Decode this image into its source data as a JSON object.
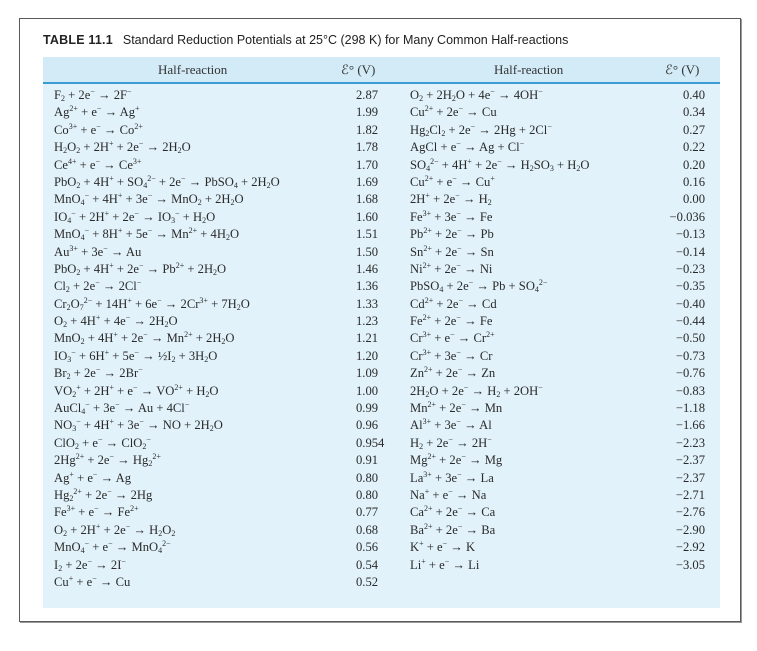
{
  "table": {
    "number": "TABLE 11.1",
    "caption": "Standard Reduction Potentials at 25°C (298 K) for Many Common Half-reactions",
    "headers": {
      "left_reaction": "Half-reaction",
      "left_potential": "ℰ° (V)",
      "right_reaction": "Half-reaction",
      "right_potential": "ℰ° (V)"
    },
    "colors": {
      "panel_bg": "#e1f2fa",
      "header_bg": "#d2ebf7",
      "header_rule": "#3b9bd3"
    },
    "left_column": [
      {
        "reaction": "F<sub>2</sub> + 2e<sup>−</sup> → 2F<sup>−</sup>",
        "potential": "2.87"
      },
      {
        "reaction": "Ag<sup>2+</sup> + e<sup>−</sup> → Ag<sup>+</sup>",
        "potential": "1.99"
      },
      {
        "reaction": "Co<sup>3+</sup> + e<sup>−</sup> → Co<sup>2+</sup>",
        "potential": "1.82"
      },
      {
        "reaction": "H<sub>2</sub>O<sub>2</sub> + 2H<sup>+</sup> + 2e<sup>−</sup> → 2H<sub>2</sub>O",
        "potential": "1.78"
      },
      {
        "reaction": "Ce<sup>4+</sup> + e<sup>−</sup> → Ce<sup>3+</sup>",
        "potential": "1.70"
      },
      {
        "reaction": "PbO<sub>2</sub> + 4H<sup>+</sup> + SO<sub>4</sub><sup>2−</sup> + 2e<sup>−</sup> → PbSO<sub>4</sub> + 2H<sub>2</sub>O",
        "potential": "1.69"
      },
      {
        "reaction": "MnO<sub>4</sub><sup>−</sup> + 4H<sup>+</sup> + 3e<sup>−</sup> → MnO<sub>2</sub> + 2H<sub>2</sub>O",
        "potential": "1.68"
      },
      {
        "reaction": "IO<sub>4</sub><sup>−</sup> + 2H<sup>+</sup> + 2e<sup>−</sup> → IO<sub>3</sub><sup>−</sup> + H<sub>2</sub>O",
        "potential": "1.60"
      },
      {
        "reaction": "MnO<sub>4</sub><sup>−</sup> + 8H<sup>+</sup> + 5e<sup>−</sup> → Mn<sup>2+</sup> + 4H<sub>2</sub>O",
        "potential": "1.51"
      },
      {
        "reaction": "Au<sup>3+</sup> + 3e<sup>−</sup> → Au",
        "potential": "1.50"
      },
      {
        "reaction": "PbO<sub>2</sub> + 4H<sup>+</sup> + 2e<sup>−</sup> → Pb<sup>2+</sup> + 2H<sub>2</sub>O",
        "potential": "1.46"
      },
      {
        "reaction": "Cl<sub>2</sub> + 2e<sup>−</sup> → 2Cl<sup>−</sup>",
        "potential": "1.36"
      },
      {
        "reaction": "Cr<sub>2</sub>O<sub>7</sub><sup>2−</sup> + 14H<sup>+</sup> + 6e<sup>−</sup> → 2Cr<sup>3+</sup> + 7H<sub>2</sub>O",
        "potential": "1.33"
      },
      {
        "reaction": "O<sub>2</sub> + 4H<sup>+</sup> + 4e<sup>−</sup> → 2H<sub>2</sub>O",
        "potential": "1.23"
      },
      {
        "reaction": "MnO<sub>2</sub> + 4H<sup>+</sup> + 2e<sup>−</sup> → Mn<sup>2+</sup> + 2H<sub>2</sub>O",
        "potential": "1.21"
      },
      {
        "reaction": "IO<sub>3</sub><sup>−</sup> + 6H<sup>+</sup> + 5e<sup>−</sup> → ½I<sub>2</sub> + 3H<sub>2</sub>O",
        "potential": "1.20"
      },
      {
        "reaction": "Br<sub>2</sub> + 2e<sup>−</sup> → 2Br<sup>−</sup>",
        "potential": "1.09"
      },
      {
        "reaction": "VO<sub>2</sub><sup>+</sup> + 2H<sup>+</sup> + e<sup>−</sup> → VO<sup>2+</sup> + H<sub>2</sub>O",
        "potential": "1.00"
      },
      {
        "reaction": "AuCl<sub>4</sub><sup>−</sup> + 3e<sup>−</sup> → Au + 4Cl<sup>−</sup>",
        "potential": "0.99"
      },
      {
        "reaction": "NO<sub>3</sub><sup>−</sup> + 4H<sup>+</sup> + 3e<sup>−</sup> → NO + 2H<sub>2</sub>O",
        "potential": "0.96"
      },
      {
        "reaction": "ClO<sub>2</sub> + e<sup>−</sup> → ClO<sub>2</sub><sup>−</sup>",
        "potential": "0.954"
      },
      {
        "reaction": "2Hg<sup>2+</sup> + 2e<sup>−</sup> → Hg<sub>2</sub><sup>2+</sup>",
        "potential": "0.91"
      },
      {
        "reaction": "Ag<sup>+</sup> + e<sup>−</sup> → Ag",
        "potential": "0.80"
      },
      {
        "reaction": "Hg<sub>2</sub><sup>2+</sup> + 2e<sup>−</sup> → 2Hg",
        "potential": "0.80"
      },
      {
        "reaction": "Fe<sup>3+</sup> + e<sup>−</sup> → Fe<sup>2+</sup>",
        "potential": "0.77"
      },
      {
        "reaction": "O<sub>2</sub> + 2H<sup>+</sup> + 2e<sup>−</sup> → H<sub>2</sub>O<sub>2</sub>",
        "potential": "0.68"
      },
      {
        "reaction": "MnO<sub>4</sub><sup>−</sup> + e<sup>−</sup> → MnO<sub>4</sub><sup>2−</sup>",
        "potential": "0.56"
      },
      {
        "reaction": "I<sub>2</sub> + 2e<sup>−</sup> → 2I<sup>−</sup>",
        "potential": "0.54"
      },
      {
        "reaction": "Cu<sup>+</sup> + e<sup>−</sup> → Cu",
        "potential": "0.52"
      }
    ],
    "right_column": [
      {
        "reaction": "O<sub>2</sub> + 2H<sub>2</sub>O + 4e<sup>−</sup> → 4OH<sup>−</sup>",
        "potential": "0.40"
      },
      {
        "reaction": "Cu<sup>2+</sup> + 2e<sup>−</sup> → Cu",
        "potential": "0.34"
      },
      {
        "reaction": "Hg<sub>2</sub>Cl<sub>2</sub> + 2e<sup>−</sup> → 2Hg + 2Cl<sup>−</sup>",
        "potential": "0.27"
      },
      {
        "reaction": "AgCl + e<sup>−</sup> → Ag + Cl<sup>−</sup>",
        "potential": "0.22"
      },
      {
        "reaction": "SO<sub>4</sub><sup>2−</sup> + 4H<sup>+</sup> + 2e<sup>−</sup> → H<sub>2</sub>SO<sub>3</sub> + H<sub>2</sub>O",
        "potential": "0.20"
      },
      {
        "reaction": "Cu<sup>2+</sup> + e<sup>−</sup> → Cu<sup>+</sup>",
        "potential": "0.16"
      },
      {
        "reaction": "2H<sup>+</sup> + 2e<sup>−</sup> → H<sub>2</sub>",
        "potential": "0.00"
      },
      {
        "reaction": "Fe<sup>3+</sup> + 3e<sup>−</sup> → Fe",
        "potential": "−0.036"
      },
      {
        "reaction": "Pb<sup>2+</sup> + 2e<sup>−</sup> → Pb",
        "potential": "−0.13"
      },
      {
        "reaction": "Sn<sup>2+</sup> + 2e<sup>−</sup> → Sn",
        "potential": "−0.14"
      },
      {
        "reaction": "Ni<sup>2+</sup> + 2e<sup>−</sup> → Ni",
        "potential": "−0.23"
      },
      {
        "reaction": "PbSO<sub>4</sub> + 2e<sup>−</sup> → Pb + SO<sub>4</sub><sup>2−</sup>",
        "potential": "−0.35"
      },
      {
        "reaction": "Cd<sup>2+</sup> + 2e<sup>−</sup> → Cd",
        "potential": "−0.40"
      },
      {
        "reaction": "Fe<sup>2+</sup> + 2e<sup>−</sup> → Fe",
        "potential": "−0.44"
      },
      {
        "reaction": "Cr<sup>3+</sup> + e<sup>−</sup> → Cr<sup>2+</sup>",
        "potential": "−0.50"
      },
      {
        "reaction": "Cr<sup>3+</sup> + 3e<sup>−</sup> → Cr",
        "potential": "−0.73"
      },
      {
        "reaction": "Zn<sup>2+</sup> + 2e<sup>−</sup> → Zn",
        "potential": "−0.76"
      },
      {
        "reaction": "2H<sub>2</sub>O + 2e<sup>−</sup> → H<sub>2</sub> + 2OH<sup>−</sup>",
        "potential": "−0.83"
      },
      {
        "reaction": "Mn<sup>2+</sup> + 2e<sup>−</sup> → Mn",
        "potential": "−1.18"
      },
      {
        "reaction": "Al<sup>3+</sup> + 3e<sup>−</sup> → Al",
        "potential": "−1.66"
      },
      {
        "reaction": "H<sub>2</sub> + 2e<sup>−</sup> → 2H<sup>−</sup>",
        "potential": "−2.23"
      },
      {
        "reaction": "Mg<sup>2+</sup> + 2e<sup>−</sup> → Mg",
        "potential": "−2.37"
      },
      {
        "reaction": "La<sup>3+</sup> + 3e<sup>−</sup> → La",
        "potential": "−2.37"
      },
      {
        "reaction": "Na<sup>+</sup> + e<sup>−</sup> → Na",
        "potential": "−2.71"
      },
      {
        "reaction": "Ca<sup>2+</sup> + 2e<sup>−</sup> → Ca",
        "potential": "−2.76"
      },
      {
        "reaction": "Ba<sup>2+</sup> + 2e<sup>−</sup> → Ba",
        "potential": "−2.90"
      },
      {
        "reaction": "K<sup>+</sup> + e<sup>−</sup> → K",
        "potential": "−2.92"
      },
      {
        "reaction": "Li<sup>+</sup> + e<sup>−</sup> → Li",
        "potential": "−3.05"
      }
    ]
  }
}
